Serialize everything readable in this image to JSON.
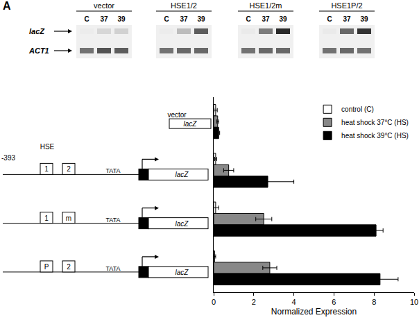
{
  "figure_label": "A",
  "gel": {
    "lanes": [
      "C",
      "37",
      "39"
    ],
    "rows": [
      "lacZ",
      "ACT1"
    ],
    "groups": [
      {
        "name": "vector",
        "bands": [
          [
            0.02,
            0.12,
            0.15
          ],
          [
            0.6,
            0.75,
            0.7
          ]
        ]
      },
      {
        "name": "HSE1/2",
        "bands": [
          [
            0.02,
            0.25,
            0.7
          ],
          [
            0.6,
            0.65,
            0.65
          ]
        ]
      },
      {
        "name": "HSE1/2m",
        "bands": [
          [
            0.03,
            0.55,
            0.95
          ],
          [
            0.6,
            0.65,
            0.65
          ]
        ]
      },
      {
        "name": "HSE1P/2",
        "bands": [
          [
            0.03,
            0.65,
            0.9
          ],
          [
            0.6,
            0.65,
            0.6
          ]
        ]
      }
    ]
  },
  "diagram": {
    "vector_label": "vector",
    "reporter": "lacZ",
    "start_label": "-393",
    "hse_label": "HSE",
    "tata_label": "TATA",
    "constructs": [
      [
        "1",
        "2"
      ],
      [
        "1",
        "m"
      ],
      [
        "P",
        "2"
      ]
    ]
  },
  "chart_data": {
    "type": "bar",
    "orientation": "horizontal",
    "categories": [
      null,
      null,
      null,
      null
    ],
    "series": [
      {
        "name": "control (C)",
        "color": "#ffffff",
        "values": [
          0.1,
          0.1,
          0.1,
          0.05
        ],
        "errors": [
          0.08,
          0.05,
          0.15,
          0.05
        ]
      },
      {
        "name": "heat shock 37°C (HS)",
        "color": "#888888",
        "values": [
          0.2,
          0.75,
          2.5,
          2.8
        ],
        "errors": [
          0.05,
          0.25,
          0.4,
          0.35
        ]
      },
      {
        "name": "heat shock 39°C (HS)",
        "color": "#000000",
        "values": [
          0.25,
          2.7,
          8.1,
          8.3
        ],
        "errors": [
          0.05,
          1.3,
          0.35,
          0.9
        ]
      }
    ],
    "xlim": [
      0,
      10
    ],
    "xticks": [
      0,
      2,
      4,
      6,
      8,
      10
    ],
    "x_label": "Normalized Expression",
    "legend": "top right",
    "tick_labels": "x",
    "grid": false
  }
}
